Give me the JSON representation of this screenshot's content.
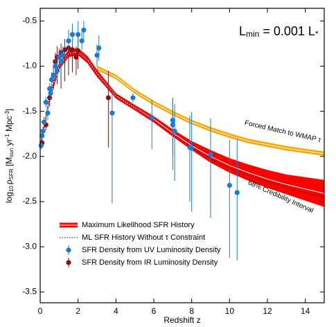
{
  "chart_data": {
    "type": "line",
    "xlabel": "Redshift z",
    "ylabel_parts": [
      "log",
      "10",
      "ρ",
      "SFR",
      " [M",
      "sun",
      " yr",
      "-1",
      " Mpc",
      "-3",
      "]"
    ],
    "annotation_parts": [
      "L",
      "min",
      " = 0.001 L",
      "*"
    ],
    "annotations": [
      "Forced Match to WMAP τ",
      "68% Credibility Interval"
    ],
    "xlim": [
      0,
      15
    ],
    "ylim": [
      -3.62,
      -0.36
    ],
    "xticks": [
      0,
      2,
      4,
      6,
      8,
      10,
      12,
      14
    ],
    "yticks": [
      {
        "value": -0.5,
        "label": "-0.5"
      },
      {
        "value": -1.0,
        "label": "-1.0"
      },
      {
        "value": -1.5,
        "label": "-1.5"
      },
      {
        "value": -2.0,
        "label": "-2.0"
      },
      {
        "value": -2.5,
        "label": "-2.5"
      },
      {
        "value": -3.0,
        "label": "-3.0"
      },
      {
        "value": -3.5,
        "label": "-3.5"
      }
    ],
    "series": [
      {
        "name": "Maximum Likelihood SFR History",
        "kind": "band",
        "color": "#ff0000",
        "x": [
          0,
          0.5,
          1,
          1.5,
          2,
          2.5,
          3,
          4,
          5,
          6,
          7,
          8,
          9,
          10,
          11,
          12,
          13,
          14,
          15
        ],
        "values": [
          -1.9,
          -1.35,
          -1.0,
          -0.86,
          -0.84,
          -0.93,
          -1.08,
          -1.33,
          -1.46,
          -1.59,
          -1.74,
          -1.88,
          -2.0,
          -2.1,
          -2.18,
          -2.25,
          -2.31,
          -2.36,
          -2.41
        ],
        "lower": [
          -1.94,
          -1.39,
          -1.04,
          -0.9,
          -0.88,
          -0.97,
          -1.12,
          -1.36,
          -1.49,
          -1.625,
          -1.78,
          -1.93,
          -2.07,
          -2.18,
          -2.27,
          -2.35,
          -2.42,
          -2.49,
          -2.56
        ],
        "upper": [
          -1.86,
          -1.31,
          -0.96,
          -0.82,
          -0.8,
          -0.89,
          -1.04,
          -1.3,
          -1.43,
          -1.555,
          -1.7,
          -1.83,
          -1.93,
          -2.02,
          -2.09,
          -2.15,
          -2.2,
          -2.23,
          -2.26
        ]
      },
      {
        "name": "ML SFR History Without τ Constraint",
        "kind": "dotted",
        "color": "#000000",
        "x": [
          0,
          0.5,
          1,
          1.5,
          2,
          2.5,
          3,
          4,
          5,
          6,
          7,
          8,
          9,
          10,
          11,
          12,
          13,
          14,
          15
        ],
        "values": [
          -1.9,
          -1.35,
          -1.0,
          -0.86,
          -0.84,
          -0.93,
          -1.08,
          -1.33,
          -1.46,
          -1.6,
          -1.75,
          -1.9,
          -2.03,
          -2.13,
          -2.21,
          -2.28,
          -2.34,
          -2.4,
          -2.45
        ]
      },
      {
        "name": "SFR Density from UV Luminosity Density",
        "kind": "points",
        "color": "#1a7ad4",
        "x": [
          0.05,
          0.1,
          0.15,
          0.2,
          0.3,
          0.4,
          0.5,
          0.55,
          0.6,
          0.7,
          0.8,
          0.9,
          1.0,
          1.1,
          1.2,
          1.5,
          1.7,
          2.0,
          2.2,
          2.3,
          3.0,
          3.1,
          3.8,
          4.9,
          5.9,
          7.0,
          7.0,
          7.1,
          7.9,
          8.0,
          9.0,
          10.0,
          10.4
        ],
        "values": [
          -1.88,
          -1.77,
          -1.72,
          -1.62,
          -1.4,
          -1.52,
          -1.25,
          -1.3,
          -1.15,
          -1.1,
          -1.0,
          -1.05,
          -0.9,
          -0.95,
          -0.88,
          -0.72,
          -0.65,
          -0.65,
          -0.72,
          -0.6,
          -0.88,
          -0.8,
          -1.52,
          -1.35,
          -1.57,
          -1.6,
          -1.65,
          -1.72,
          -1.9,
          -1.91,
          -1.98,
          -2.32,
          -2.4
        ],
        "err_plus": [
          0.04,
          0.05,
          0.05,
          0.06,
          0.06,
          0.08,
          0.06,
          0.08,
          0.08,
          0.08,
          0.08,
          0.1,
          0.1,
          0.12,
          0.1,
          0.12,
          0.12,
          0.15,
          0.1,
          0.1,
          0.12,
          0.14,
          0.25,
          0.05,
          0.2,
          0.25,
          0.3,
          0.3,
          0.35,
          0.4,
          0.4,
          0.5,
          0.6
        ],
        "err_minus": [
          0.04,
          0.05,
          0.05,
          0.06,
          0.06,
          0.08,
          0.06,
          0.08,
          0.08,
          0.08,
          0.08,
          0.1,
          0.1,
          0.12,
          0.1,
          0.12,
          0.12,
          0.15,
          0.1,
          0.1,
          0.12,
          0.14,
          1.0,
          0.05,
          0.35,
          0.4,
          0.5,
          0.55,
          0.6,
          0.7,
          0.7,
          0.8,
          0.75
        ]
      },
      {
        "name": "SFR Density from IR Luminosity Density",
        "kind": "points",
        "color": "#8b1010",
        "x": [
          0.1,
          0.3,
          0.5,
          0.7,
          0.8,
          0.9,
          1.1,
          1.3,
          1.5,
          1.7,
          1.9,
          2.0,
          3.6
        ],
        "values": [
          -1.85,
          -1.65,
          -1.35,
          -1.1,
          -0.95,
          -0.9,
          -0.85,
          -0.82,
          -0.8,
          -0.82,
          -0.9,
          -0.83,
          -1.35
        ],
        "err_plus": [
          0.05,
          0.06,
          0.08,
          0.1,
          0.1,
          0.12,
          0.1,
          0.12,
          0.12,
          0.12,
          0.12,
          0.15,
          0.3
        ],
        "err_minus": [
          0.05,
          0.06,
          0.1,
          0.15,
          0.2,
          0.3,
          0.4,
          0.35,
          0.3,
          0.25,
          0.2,
          0.2,
          0.55
        ]
      },
      {
        "kind": "band",
        "color": "#ffa500",
        "x": [
          3,
          4,
          5,
          6,
          7,
          8,
          9,
          10,
          11,
          12,
          13,
          14,
          15
        ],
        "values": [
          -1.02,
          -1.12,
          -1.28,
          -1.41,
          -1.52,
          -1.62,
          -1.7,
          -1.77,
          -1.83,
          -1.87,
          -1.91,
          -1.94,
          -1.97
        ],
        "lower": [
          -1.045,
          -1.145,
          -1.305,
          -1.435,
          -1.545,
          -1.645,
          -1.725,
          -1.795,
          -1.855,
          -1.895,
          -1.935,
          -1.965,
          -1.995
        ],
        "upper": [
          -0.995,
          -1.095,
          -1.255,
          -1.385,
          -1.495,
          -1.595,
          -1.675,
          -1.745,
          -1.805,
          -1.845,
          -1.885,
          -1.915,
          -1.945
        ]
      }
    ]
  }
}
